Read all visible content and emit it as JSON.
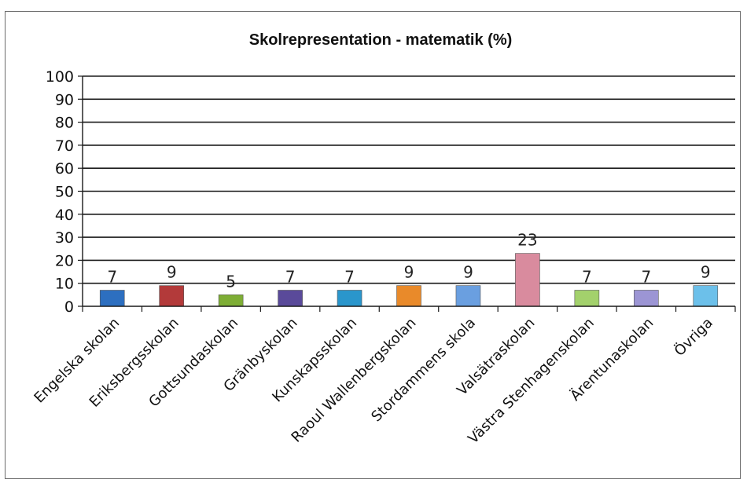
{
  "chart_data": {
    "type": "bar",
    "title": "Skolrepresentation - matematik (%)",
    "xlabel": "",
    "ylabel": "",
    "ylim": [
      0,
      100
    ],
    "yticks": [
      0,
      10,
      20,
      30,
      40,
      50,
      60,
      70,
      80,
      90,
      100
    ],
    "grid": true,
    "legend": "none",
    "categories": [
      "Engelska skolan",
      "Eriksbergsskolan",
      "Gottsundaskolan",
      "Gränbyskolan",
      "Kunskapsskolan",
      "Raoul Wallenbergskolan",
      "Stordammens skola",
      "Valsätraskolan",
      "Västra Stenhagenskolan",
      "Ärentunaskolan",
      "Övriga"
    ],
    "values": [
      7,
      9,
      5,
      7,
      7,
      9,
      9,
      23,
      7,
      7,
      9
    ],
    "colors": [
      "#2d6fc0",
      "#b33a3a",
      "#7eae35",
      "#5a4a9a",
      "#2a96cc",
      "#e98a2a",
      "#6a9fe0",
      "#d98b9e",
      "#a3d16c",
      "#9c95d4",
      "#6cc0ea"
    ]
  }
}
